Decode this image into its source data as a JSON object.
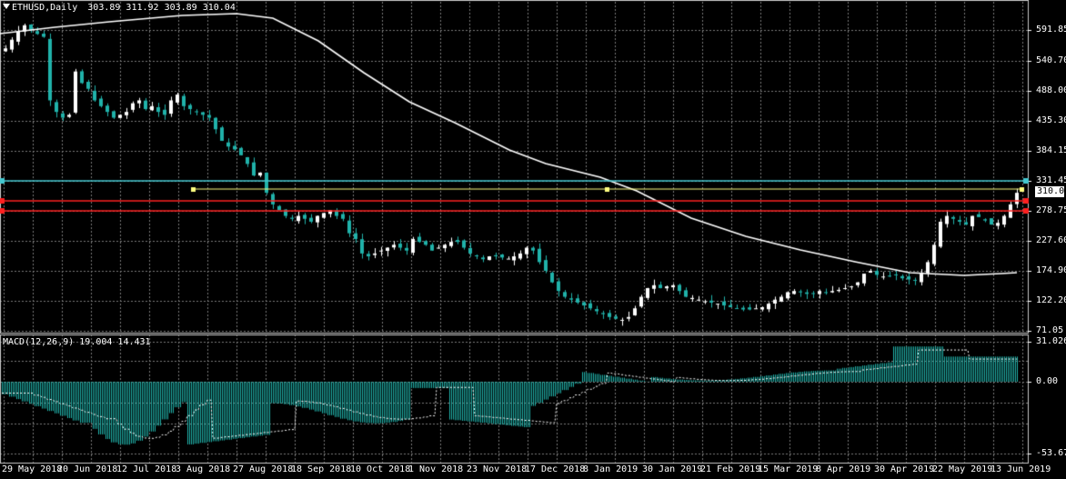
{
  "header": {
    "main_title": "ETHUSD,Daily",
    "ohlc": "303.89 311.92 303.89 310.04",
    "macd_title": "MACD(12,26,9) 19.004 14.431"
  },
  "price_axis": [
    "591.85",
    "540.70",
    "488.00",
    "435.30",
    "384.15",
    "331.45",
    "278.75",
    "227.60",
    "174.90",
    "122.20",
    "71.05"
  ],
  "macd_axis": [
    "31.026",
    "0.00",
    "-53.67"
  ],
  "current_price": "310.04",
  "date_axis": [
    "29 May 2018",
    "20 Jun 2018",
    "12 Jul 2018",
    "3 Aug 2018",
    "27 Aug 2018",
    "18 Sep 2018",
    "10 Oct 2018",
    "1 Nov 2018",
    "23 Nov 2018",
    "17 Dec 2018",
    "8 Jan 2019",
    "30 Jan 2019",
    "21 Feb 2019",
    "15 Mar 2019",
    "8 Apr 2019",
    "30 Apr 2019",
    "22 May 2019",
    "13 Jun 2019"
  ],
  "colors": {
    "bull": "#ffffff",
    "bear": "#20b2aa",
    "grid": "#7a7a7a",
    "ma": "#ffffff",
    "hline_cyan": "#44c8d0",
    "hline_red": "#ff2020",
    "trend_yellow": "#ffff80",
    "macd_hist": "#20b2aa"
  },
  "chart_data": {
    "type": "candlestick",
    "price_levels": {
      "cyan": 331.45,
      "red_upper": 298,
      "red_lower": 278.75
    },
    "close": [
      560,
      575,
      590,
      600,
      592,
      585,
      580,
      470,
      450,
      440,
      445,
      520,
      500,
      490,
      470,
      460,
      450,
      440,
      445,
      450,
      465,
      470,
      455,
      460,
      450,
      445,
      470,
      480,
      460,
      455,
      450,
      445,
      440,
      420,
      400,
      390,
      385,
      375,
      360,
      340,
      345,
      310,
      290,
      280,
      270,
      265,
      270,
      265,
      260,
      270,
      275,
      280,
      270,
      265,
      240,
      230,
      205,
      200,
      205,
      210,
      215,
      220,
      215,
      210,
      230,
      225,
      220,
      210,
      215,
      220,
      225,
      225,
      215,
      205,
      200,
      195,
      200,
      200,
      198,
      196,
      200,
      205,
      215,
      210,
      190,
      175,
      155,
      140,
      130,
      125,
      120,
      115,
      110,
      105,
      100,
      95,
      92,
      90,
      95,
      110,
      130,
      145,
      150,
      145,
      148,
      150,
      140,
      130,
      128,
      125,
      122,
      120,
      118,
      115,
      112,
      110,
      108,
      108,
      110,
      112,
      118,
      125,
      130,
      138,
      140,
      138,
      135,
      135,
      140,
      138,
      140,
      142,
      145,
      148,
      155,
      170,
      175,
      168,
      165,
      165,
      168,
      162,
      160,
      158,
      170,
      190,
      220,
      260,
      270,
      265,
      260,
      255,
      270,
      268,
      262,
      255,
      258,
      270,
      290,
      310
    ]
  }
}
